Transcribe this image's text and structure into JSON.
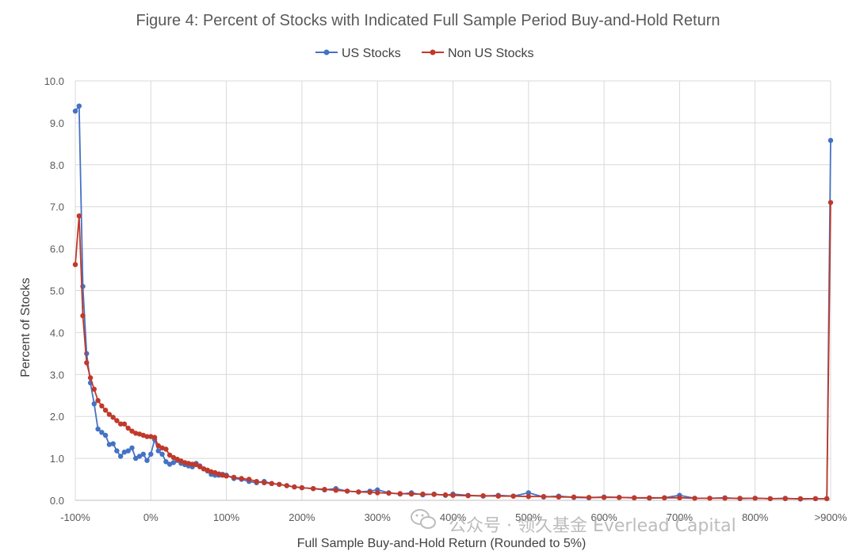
{
  "chart_data": {
    "type": "line",
    "title": "Figure 4: Percent of Stocks with Indicated Full Sample Period Buy-and-Hold Return",
    "xlabel": "Full Sample Buy-and-Hold Return (Rounded to 5%)",
    "ylabel": "Percent of Stocks",
    "ylim": [
      0,
      10
    ],
    "xlim": [
      -100,
      900
    ],
    "y_ticks": [
      "0.0",
      "1.0",
      "2.0",
      "3.0",
      "4.0",
      "5.0",
      "6.0",
      "7.0",
      "8.0",
      "9.0",
      "10.0"
    ],
    "x_tick_labels": [
      "-100%",
      "0%",
      "100%",
      "200%",
      "300%",
      "400%",
      "500%",
      "600%",
      "700%",
      "800%",
      ">900%"
    ],
    "grid": true,
    "legend": "top-center",
    "series": [
      {
        "name": "US Stocks",
        "color": "#4472c4",
        "points": [
          [
            -100,
            9.28
          ],
          [
            -95,
            9.4
          ],
          [
            -90,
            5.1
          ],
          [
            -85,
            3.5
          ],
          [
            -80,
            2.8
          ],
          [
            -75,
            2.3
          ],
          [
            -70,
            1.7
          ],
          [
            -65,
            1.62
          ],
          [
            -60,
            1.55
          ],
          [
            -55,
            1.33
          ],
          [
            -50,
            1.35
          ],
          [
            -45,
            1.18
          ],
          [
            -40,
            1.05
          ],
          [
            -35,
            1.15
          ],
          [
            -30,
            1.18
          ],
          [
            -25,
            1.25
          ],
          [
            -20,
            1.0
          ],
          [
            -15,
            1.05
          ],
          [
            -10,
            1.1
          ],
          [
            -5,
            0.95
          ],
          [
            0,
            1.1
          ],
          [
            5,
            1.45
          ],
          [
            10,
            1.18
          ],
          [
            15,
            1.1
          ],
          [
            20,
            0.92
          ],
          [
            25,
            0.86
          ],
          [
            30,
            0.9
          ],
          [
            35,
            0.95
          ],
          [
            40,
            0.88
          ],
          [
            45,
            0.85
          ],
          [
            50,
            0.82
          ],
          [
            55,
            0.8
          ],
          [
            60,
            0.88
          ],
          [
            65,
            0.82
          ],
          [
            70,
            0.75
          ],
          [
            75,
            0.7
          ],
          [
            80,
            0.62
          ],
          [
            85,
            0.6
          ],
          [
            90,
            0.6
          ],
          [
            95,
            0.62
          ],
          [
            100,
            0.6
          ],
          [
            110,
            0.52
          ],
          [
            120,
            0.5
          ],
          [
            130,
            0.45
          ],
          [
            140,
            0.42
          ],
          [
            150,
            0.45
          ],
          [
            160,
            0.4
          ],
          [
            170,
            0.38
          ],
          [
            180,
            0.35
          ],
          [
            190,
            0.32
          ],
          [
            200,
            0.3
          ],
          [
            215,
            0.28
          ],
          [
            230,
            0.25
          ],
          [
            245,
            0.28
          ],
          [
            260,
            0.22
          ],
          [
            275,
            0.2
          ],
          [
            290,
            0.22
          ],
          [
            300,
            0.25
          ],
          [
            315,
            0.18
          ],
          [
            330,
            0.15
          ],
          [
            345,
            0.18
          ],
          [
            360,
            0.13
          ],
          [
            375,
            0.15
          ],
          [
            390,
            0.12
          ],
          [
            400,
            0.15
          ],
          [
            420,
            0.12
          ],
          [
            440,
            0.1
          ],
          [
            460,
            0.12
          ],
          [
            480,
            0.1
          ],
          [
            500,
            0.18
          ],
          [
            520,
            0.08
          ],
          [
            540,
            0.1
          ],
          [
            560,
            0.07
          ],
          [
            580,
            0.06
          ],
          [
            600,
            0.08
          ],
          [
            620,
            0.07
          ],
          [
            640,
            0.06
          ],
          [
            660,
            0.05
          ],
          [
            680,
            0.06
          ],
          [
            700,
            0.12
          ],
          [
            720,
            0.05
          ],
          [
            740,
            0.05
          ],
          [
            760,
            0.06
          ],
          [
            780,
            0.04
          ],
          [
            800,
            0.05
          ],
          [
            820,
            0.04
          ],
          [
            840,
            0.05
          ],
          [
            860,
            0.03
          ],
          [
            880,
            0.04
          ],
          [
            895,
            0.04
          ],
          [
            900,
            8.58
          ]
        ]
      },
      {
        "name": "Non US Stocks",
        "color": "#c0392b",
        "points": [
          [
            -100,
            5.62
          ],
          [
            -95,
            6.78
          ],
          [
            -90,
            4.4
          ],
          [
            -85,
            3.28
          ],
          [
            -80,
            2.92
          ],
          [
            -75,
            2.65
          ],
          [
            -70,
            2.38
          ],
          [
            -65,
            2.25
          ],
          [
            -60,
            2.15
          ],
          [
            -55,
            2.05
          ],
          [
            -50,
            1.98
          ],
          [
            -45,
            1.9
          ],
          [
            -40,
            1.82
          ],
          [
            -35,
            1.82
          ],
          [
            -30,
            1.72
          ],
          [
            -25,
            1.65
          ],
          [
            -20,
            1.6
          ],
          [
            -15,
            1.58
          ],
          [
            -10,
            1.55
          ],
          [
            -5,
            1.52
          ],
          [
            0,
            1.52
          ],
          [
            5,
            1.5
          ],
          [
            10,
            1.3
          ],
          [
            15,
            1.25
          ],
          [
            20,
            1.22
          ],
          [
            25,
            1.08
          ],
          [
            30,
            1.02
          ],
          [
            35,
            0.98
          ],
          [
            40,
            0.94
          ],
          [
            45,
            0.9
          ],
          [
            50,
            0.88
          ],
          [
            55,
            0.86
          ],
          [
            60,
            0.85
          ],
          [
            65,
            0.8
          ],
          [
            70,
            0.75
          ],
          [
            75,
            0.72
          ],
          [
            80,
            0.68
          ],
          [
            85,
            0.66
          ],
          [
            90,
            0.63
          ],
          [
            95,
            0.6
          ],
          [
            100,
            0.58
          ],
          [
            110,
            0.55
          ],
          [
            120,
            0.52
          ],
          [
            130,
            0.5
          ],
          [
            140,
            0.45
          ],
          [
            150,
            0.42
          ],
          [
            160,
            0.4
          ],
          [
            170,
            0.38
          ],
          [
            180,
            0.35
          ],
          [
            190,
            0.32
          ],
          [
            200,
            0.3
          ],
          [
            215,
            0.28
          ],
          [
            230,
            0.26
          ],
          [
            245,
            0.24
          ],
          [
            260,
            0.22
          ],
          [
            275,
            0.2
          ],
          [
            290,
            0.19
          ],
          [
            300,
            0.18
          ],
          [
            315,
            0.17
          ],
          [
            330,
            0.16
          ],
          [
            345,
            0.15
          ],
          [
            360,
            0.15
          ],
          [
            375,
            0.14
          ],
          [
            390,
            0.13
          ],
          [
            400,
            0.12
          ],
          [
            420,
            0.11
          ],
          [
            440,
            0.11
          ],
          [
            460,
            0.1
          ],
          [
            480,
            0.1
          ],
          [
            500,
            0.09
          ],
          [
            520,
            0.09
          ],
          [
            540,
            0.08
          ],
          [
            560,
            0.08
          ],
          [
            580,
            0.07
          ],
          [
            600,
            0.07
          ],
          [
            620,
            0.07
          ],
          [
            640,
            0.06
          ],
          [
            660,
            0.06
          ],
          [
            680,
            0.06
          ],
          [
            700,
            0.06
          ],
          [
            720,
            0.05
          ],
          [
            740,
            0.05
          ],
          [
            760,
            0.05
          ],
          [
            780,
            0.05
          ],
          [
            800,
            0.05
          ],
          [
            820,
            0.04
          ],
          [
            840,
            0.04
          ],
          [
            860,
            0.04
          ],
          [
            880,
            0.04
          ],
          [
            895,
            0.04
          ],
          [
            900,
            7.1
          ]
        ]
      }
    ]
  },
  "watermark": {
    "text": "公众号 · 领久基金 Everlead Capital"
  }
}
